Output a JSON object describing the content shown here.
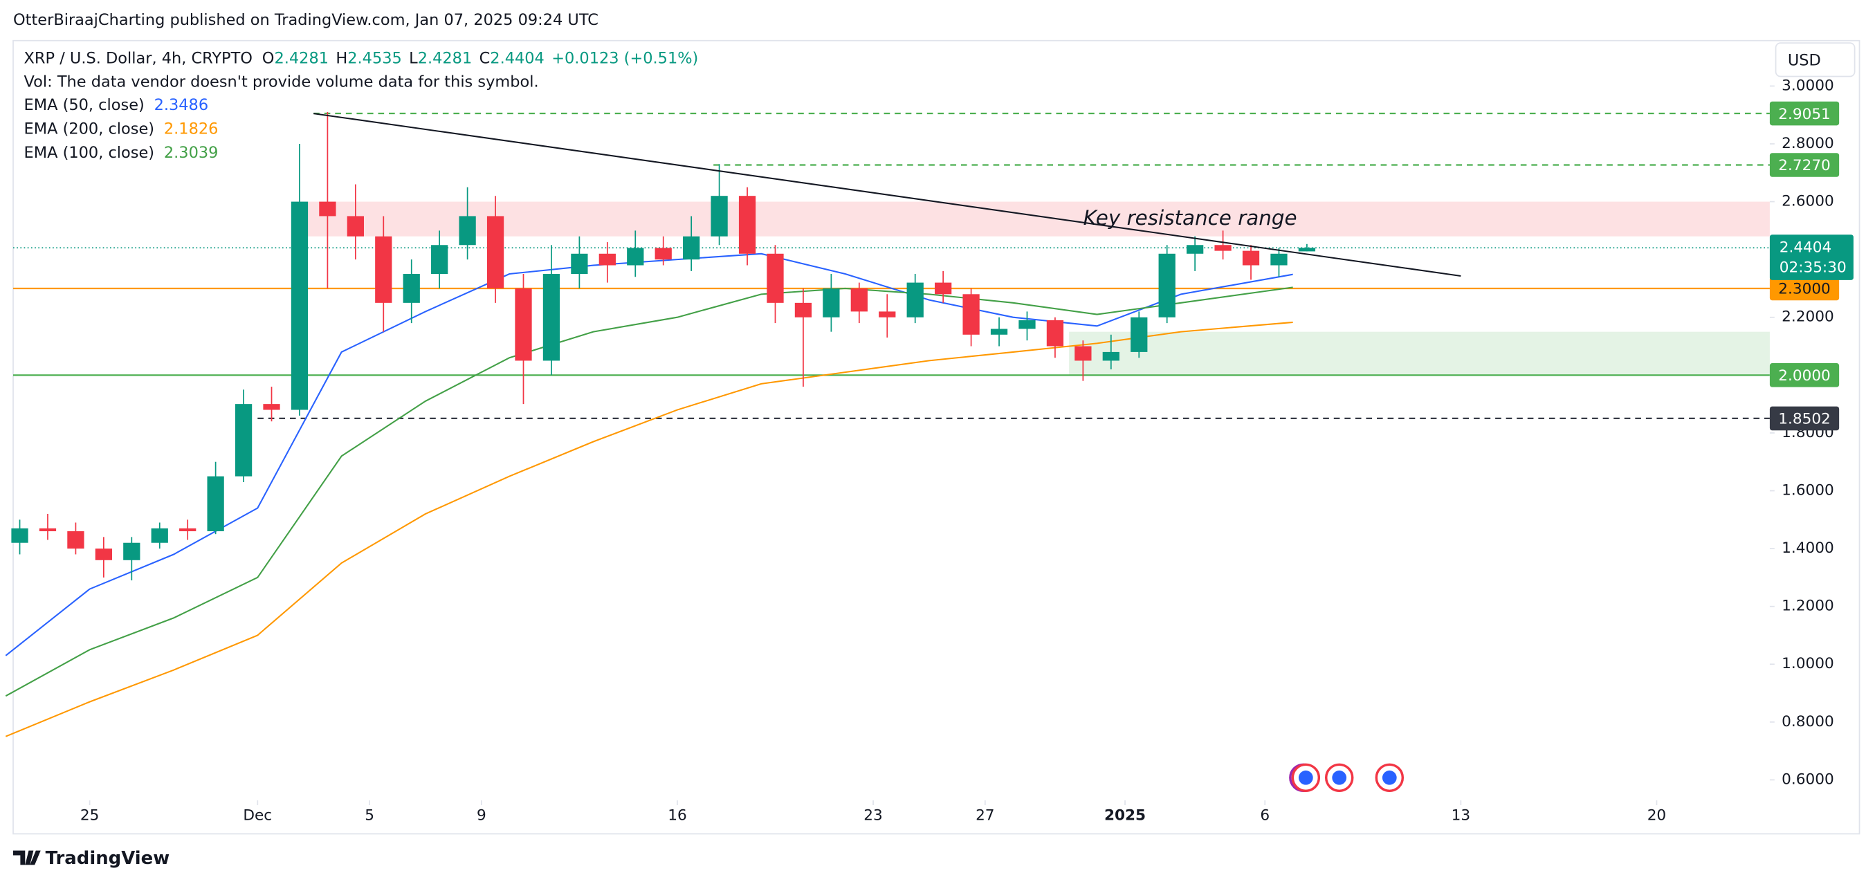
{
  "header": {
    "byline": "OtterBiraajCharting published on TradingView.com, Jan 07, 2025 09:24 UTC",
    "currency": "USD",
    "brand": "TradingView"
  },
  "chart_data": {
    "type": "candlestick",
    "symbol": "XRP / U.S. Dollar, 4h, CRYPTO",
    "ohlc_letters": [
      "O",
      "H",
      "L",
      "C"
    ],
    "change": "+0.0123 (+0.51%)",
    "volume_note": "Vol: The data vendor doesn't provide volume data for this symbol.",
    "up_color": "#089981",
    "down_color": "#f23645",
    "x": [
      "2024-11-22",
      "2024-11-23",
      "2024-11-24",
      "2024-11-25",
      "2024-11-26",
      "2024-11-27",
      "2024-11-28",
      "2024-11-29",
      "2024-11-30",
      "2024-12-01",
      "2024-12-02",
      "2024-12-03",
      "2024-12-04",
      "2024-12-05",
      "2024-12-06",
      "2024-12-07",
      "2024-12-08",
      "2024-12-09",
      "2024-12-10",
      "2024-12-11",
      "2024-12-12",
      "2024-12-13",
      "2024-12-14",
      "2024-12-15",
      "2024-12-16",
      "2024-12-17",
      "2024-12-18",
      "2024-12-19",
      "2024-12-20",
      "2024-12-21",
      "2024-12-22",
      "2024-12-23",
      "2024-12-24",
      "2024-12-25",
      "2024-12-26",
      "2024-12-27",
      "2024-12-28",
      "2024-12-29",
      "2024-12-30",
      "2024-12-31",
      "2025-01-01",
      "2025-01-02",
      "2025-01-03",
      "2025-01-04",
      "2025-01-05",
      "2025-01-06",
      "2025-01-07"
    ],
    "open": [
      1.42,
      1.47,
      1.46,
      1.4,
      1.36,
      1.42,
      1.47,
      1.46,
      1.65,
      1.9,
      1.88,
      2.6,
      2.55,
      2.48,
      2.25,
      2.35,
      2.45,
      2.55,
      2.3,
      2.05,
      2.35,
      2.42,
      2.38,
      2.44,
      2.4,
      2.48,
      2.62,
      2.42,
      2.25,
      2.2,
      2.3,
      2.22,
      2.2,
      2.32,
      2.28,
      2.14,
      2.16,
      2.19,
      2.1,
      2.05,
      2.08,
      2.2,
      2.42,
      2.45,
      2.43,
      2.38,
      2.4281
    ],
    "high": [
      1.5,
      1.52,
      1.49,
      1.44,
      1.44,
      1.49,
      1.5,
      1.7,
      1.95,
      1.96,
      2.8,
      2.91,
      2.66,
      2.55,
      2.4,
      2.5,
      2.65,
      2.62,
      2.35,
      2.45,
      2.48,
      2.46,
      2.5,
      2.48,
      2.55,
      2.73,
      2.65,
      2.45,
      2.3,
      2.35,
      2.32,
      2.28,
      2.35,
      2.36,
      2.3,
      2.2,
      2.22,
      2.2,
      2.12,
      2.14,
      2.22,
      2.45,
      2.48,
      2.5,
      2.45,
      2.44,
      2.4535
    ],
    "low": [
      1.38,
      1.43,
      1.38,
      1.3,
      1.29,
      1.4,
      1.43,
      1.45,
      1.63,
      1.84,
      1.86,
      2.3,
      2.4,
      2.15,
      2.18,
      2.3,
      2.4,
      2.25,
      1.9,
      2.0,
      2.3,
      2.32,
      2.34,
      2.38,
      2.36,
      2.45,
      2.38,
      2.18,
      1.96,
      2.15,
      2.18,
      2.13,
      2.18,
      2.25,
      2.1,
      2.1,
      2.12,
      2.06,
      1.98,
      2.02,
      2.06,
      2.18,
      2.36,
      2.4,
      2.33,
      2.34,
      2.4281
    ],
    "close": [
      1.47,
      1.46,
      1.4,
      1.36,
      1.42,
      1.47,
      1.46,
      1.65,
      1.9,
      1.88,
      2.6,
      2.55,
      2.48,
      2.25,
      2.35,
      2.45,
      2.55,
      2.3,
      2.05,
      2.35,
      2.42,
      2.38,
      2.44,
      2.4,
      2.48,
      2.62,
      2.42,
      2.25,
      2.2,
      2.3,
      2.22,
      2.2,
      2.32,
      2.28,
      2.14,
      2.16,
      2.19,
      2.1,
      2.05,
      2.08,
      2.2,
      2.42,
      2.45,
      2.43,
      2.38,
      2.42,
      2.4404
    ],
    "series": [
      {
        "name": "EMA (50, close)",
        "color": "#2962ff",
        "x": [
          "2024-11-22",
          "2024-11-25",
          "2024-11-28",
          "2024-12-01",
          "2024-12-04",
          "2024-12-07",
          "2024-12-10",
          "2024-12-13",
          "2024-12-16",
          "2024-12-19",
          "2024-12-22",
          "2024-12-25",
          "2024-12-28",
          "2024-12-31",
          "2025-01-03",
          "2025-01-07"
        ],
        "values": [
          1.03,
          1.26,
          1.38,
          1.54,
          2.08,
          2.22,
          2.35,
          2.38,
          2.4,
          2.42,
          2.35,
          2.26,
          2.2,
          2.17,
          2.28,
          2.3486
        ]
      },
      {
        "name": "EMA (200, close)",
        "color": "#ff9800",
        "x": [
          "2024-11-22",
          "2024-11-25",
          "2024-11-28",
          "2024-12-01",
          "2024-12-04",
          "2024-12-07",
          "2024-12-10",
          "2024-12-13",
          "2024-12-16",
          "2024-12-19",
          "2024-12-22",
          "2024-12-25",
          "2024-12-28",
          "2024-12-31",
          "2025-01-03",
          "2025-01-07"
        ],
        "values": [
          0.75,
          0.87,
          0.98,
          1.1,
          1.35,
          1.52,
          1.65,
          1.77,
          1.88,
          1.97,
          2.01,
          2.05,
          2.08,
          2.11,
          2.15,
          2.1826
        ]
      },
      {
        "name": "EMA (100, close)",
        "color": "#43a047",
        "x": [
          "2024-11-22",
          "2024-11-25",
          "2024-11-28",
          "2024-12-01",
          "2024-12-04",
          "2024-12-07",
          "2024-12-10",
          "2024-12-13",
          "2024-12-16",
          "2024-12-19",
          "2024-12-22",
          "2024-12-25",
          "2024-12-28",
          "2024-12-31",
          "2025-01-03",
          "2025-01-07"
        ],
        "values": [
          0.89,
          1.05,
          1.16,
          1.3,
          1.72,
          1.91,
          2.06,
          2.15,
          2.2,
          2.28,
          2.3,
          2.28,
          2.25,
          2.21,
          2.25,
          2.3039
        ]
      }
    ],
    "levels": [
      {
        "value": 2.9051,
        "color": "#4caf50",
        "text_color": "#ffffff",
        "style": "dashed",
        "from": "2024-12-03"
      },
      {
        "value": 2.727,
        "label": "2.7270",
        "color": "#4caf50",
        "text_color": "#ffffff",
        "style": "dashed",
        "from": "2024-12-17T07:00"
      },
      {
        "value": 2.3,
        "label": "2.3000",
        "color": "#ff9800",
        "text_color": "#131722",
        "style": "solid"
      },
      {
        "value": 2.0,
        "label": "2.0000",
        "color": "#4caf50",
        "text_color": "#ffffff",
        "style": "solid"
      },
      {
        "value": 1.8502,
        "color": "#363a45",
        "text_color": "#ffffff",
        "style": "dashed",
        "from": "2024-12-01"
      }
    ],
    "current_price": {
      "value": 2.4404,
      "countdown": "02:35:30",
      "color": "#089981"
    },
    "zones": [
      {
        "low": 2.48,
        "high": 2.6,
        "from": "2024-12-02T12:00",
        "color": "#f23645",
        "label": "Key resistance range"
      },
      {
        "low": 2.0,
        "high": 2.15,
        "from": "2024-12-30",
        "color": "#4caf50"
      }
    ],
    "trendline": {
      "x": [
        "2024-12-03",
        "2025-01-13"
      ],
      "values": [
        2.905,
        2.343
      ],
      "color": "#131722"
    },
    "xlim": [
      "2024-11-22T06:21",
      "2025-01-24T01:00"
    ],
    "ylim": [
      0.529,
      3.153
    ],
    "xticks": [
      {
        "value": "2024-11-25",
        "label": "25"
      },
      {
        "value": "2024-12-01",
        "label": "Dec"
      },
      {
        "value": "2024-12-05",
        "label": "5"
      },
      {
        "value": "2024-12-09",
        "label": "9"
      },
      {
        "value": "2024-12-16",
        "label": "16"
      },
      {
        "value": "2024-12-23",
        "label": "23"
      },
      {
        "value": "2024-12-27",
        "label": "27"
      },
      {
        "value": "2025-01-01",
        "label": "2025"
      },
      {
        "value": "2025-01-06",
        "label": "6"
      },
      {
        "value": "2025-01-13",
        "label": "13"
      },
      {
        "value": "2025-01-20",
        "label": "20"
      }
    ],
    "yticks": [
      {
        "value": 3.0,
        "label": "3.0000"
      },
      {
        "value": 2.8,
        "label": "2.8000"
      },
      {
        "value": 2.6,
        "label": "2.6000"
      },
      {
        "value": 2.4,
        "label": "2.4000"
      },
      {
        "value": 2.2,
        "label": "2.2000"
      },
      {
        "value": 2.0,
        "label": "2.0000"
      },
      {
        "value": 1.8,
        "label": "1.8000"
      },
      {
        "value": 1.6,
        "label": "1.6000"
      },
      {
        "value": 1.4,
        "label": "1.4000"
      },
      {
        "value": 1.2,
        "label": "1.2000"
      },
      {
        "value": 1.0,
        "label": "1.0000"
      },
      {
        "value": 0.8,
        "label": "0.8000"
      },
      {
        "value": 0.6,
        "label": "0.6000"
      }
    ]
  }
}
